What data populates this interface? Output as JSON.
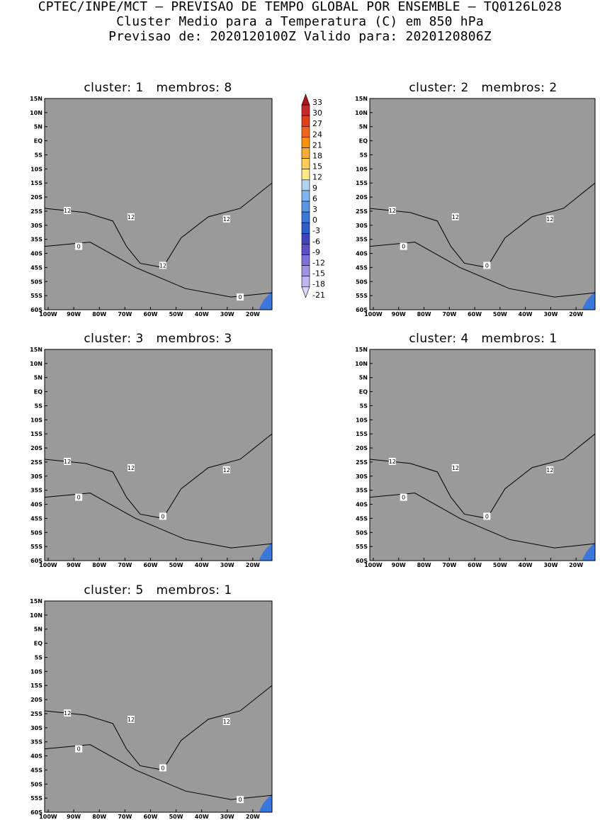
{
  "header": {
    "line1": "CPTEC/INPE/MCT – PREVISAO DE TEMPO GLOBAL POR ENSEMBLE – TQ0126L028",
    "line2": "Cluster Medio para a Temperatura (C) em 850 hPa",
    "line3": "Previsao de: 2020120100Z   Valido para: 2020120806Z"
  },
  "lat_labels": [
    "15N",
    "10N",
    "5N",
    "EQ",
    "5S",
    "10S",
    "15S",
    "20S",
    "25S",
    "30S",
    "35S",
    "40S",
    "45S",
    "50S",
    "55S",
    "60S"
  ],
  "lon_labels": [
    "100W",
    "90W",
    "80W",
    "70W",
    "60W",
    "50W",
    "40W",
    "30W",
    "20W"
  ],
  "colorbar": {
    "labels": [
      "33",
      "30",
      "27",
      "24",
      "21",
      "18",
      "15",
      "12",
      "9",
      "6",
      "3",
      "0",
      "-3",
      "-6",
      "-9",
      "-12",
      "-15",
      "-18",
      "-21"
    ],
    "colors": [
      "#b0141a",
      "#c8282a",
      "#e0401c",
      "#f06420",
      "#f59410",
      "#f8ac34",
      "#fcce58",
      "#ffe88c",
      "#b4d2f0",
      "#82b4f0",
      "#5a96e6",
      "#3c78dc",
      "#2c5ecc",
      "#3c46bc",
      "#5a50c8",
      "#7c72d8",
      "#9e92e2",
      "#beb4ee",
      "#dcd6f8"
    ]
  },
  "panels": [
    {
      "title": "cluster: 1   membros: 8",
      "contour_labels": [
        "12",
        "12",
        "12",
        "12",
        "0",
        "0"
      ]
    },
    {
      "title": "cluster: 2   membros: 2",
      "contour_labels": [
        "12",
        "12",
        "12",
        "0",
        "0"
      ]
    },
    {
      "title": "cluster: 3   membros: 3",
      "contour_labels": [
        "12",
        "12",
        "12",
        "0",
        "0"
      ]
    },
    {
      "title": "cluster: 4   membros: 1",
      "contour_labels": [
        "12",
        "12",
        "12",
        "0",
        "0"
      ]
    },
    {
      "title": "cluster: 5   membros: 1",
      "contour_labels": [
        "12",
        "12",
        "12",
        "0",
        "0",
        "0"
      ]
    }
  ]
}
